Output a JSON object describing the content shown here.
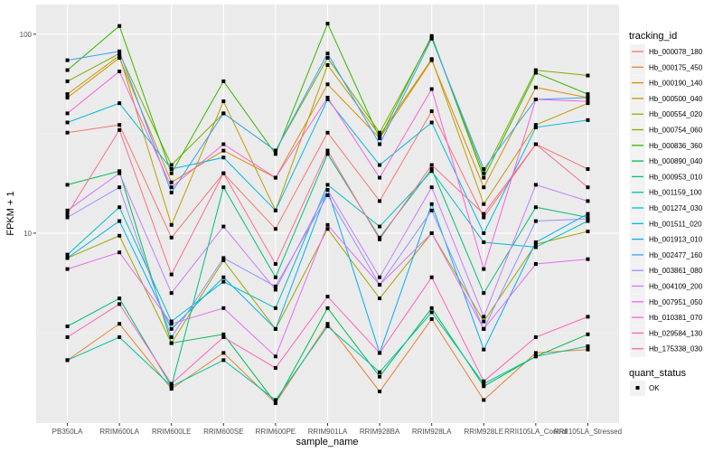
{
  "chart_data": {
    "type": "line",
    "title": "",
    "xlabel": "sample_name",
    "ylabel": "FPKM + 1",
    "yscale": "log10",
    "ylim": [
      1.11,
      141
    ],
    "grid": true,
    "y_ticks": [
      {
        "value": 10,
        "label": "10"
      },
      {
        "value": 100,
        "label": "100"
      }
    ],
    "categories": [
      "PB350LA",
      "RRIM600LA",
      "RRIM600LE",
      "RRIM600SE",
      "RRIM600PE",
      "RRIM901LA",
      "RRIM928BA",
      "RRIM928LA",
      "RRIM928LE",
      "RRII105LA_Control",
      "RRII105LA_Stressed"
    ],
    "legend_title": "tracking_id",
    "legend_position": "right",
    "series": [
      {
        "name": "Hb_000078_180",
        "color": "#F8766D",
        "values": [
          32,
          35,
          9.5,
          20,
          10.5,
          32,
          14.5,
          41,
          12,
          28,
          21
        ]
      },
      {
        "name": "Hb_000175_450",
        "color": "#EA8331",
        "values": [
          2.3,
          3.5,
          1.65,
          2.5,
          1.4,
          3.5,
          1.6,
          3.7,
          1.45,
          2.5,
          2.6
        ]
      },
      {
        "name": "Hb_000190_140",
        "color": "#D89000",
        "values": [
          48,
          76,
          18,
          26,
          19,
          56,
          30,
          74,
          17,
          54,
          48
        ]
      },
      {
        "name": "Hb_000500_040",
        "color": "#C09B00",
        "values": [
          50,
          78,
          11,
          46,
          13,
          70,
          31,
          75,
          14,
          35,
          45
        ]
      },
      {
        "name": "Hb_000554_020",
        "color": "#A3A500",
        "values": [
          7.5,
          9.7,
          2.8,
          7.3,
          3.3,
          10.5,
          4.7,
          10,
          3.6,
          8.8,
          10.2
        ]
      },
      {
        "name": "Hb_000754_060",
        "color": "#7CAE00",
        "values": [
          58,
          80,
          22,
          40,
          26,
          76,
          32,
          96,
          20,
          66,
          62
        ]
      },
      {
        "name": "Hb_000836_360",
        "color": "#39B600",
        "values": [
          66,
          110,
          20,
          58,
          25,
          113,
          30,
          98,
          19,
          64,
          50
        ]
      },
      {
        "name": "Hb_000890_040",
        "color": "#00BB4E",
        "values": [
          17.5,
          20.5,
          2.8,
          3.1,
          1.4,
          4.2,
          1.9,
          4.2,
          1.7,
          2.4,
          3.1
        ]
      },
      {
        "name": "Hb_000953_010",
        "color": "#00BF7D",
        "values": [
          3.4,
          4.7,
          1.7,
          17,
          6.0,
          25,
          9.5,
          21,
          5,
          13.5,
          12
        ]
      },
      {
        "name": "Hb_001159_100",
        "color": "#00C1A3",
        "values": [
          2.3,
          3.0,
          1.7,
          2.3,
          1.45,
          3.4,
          2.0,
          4.0,
          1.75,
          2.4,
          2.7
        ]
      },
      {
        "name": "Hb_001274_030",
        "color": "#00BFC4",
        "values": [
          7.8,
          13.5,
          3.6,
          5.7,
          4.2,
          17.5,
          10.8,
          20.5,
          9.0,
          8.5,
          11.5
        ]
      },
      {
        "name": "Hb_001511_020",
        "color": "#00BAE0",
        "values": [
          36,
          45,
          21,
          24,
          13,
          47,
          22,
          36,
          10,
          34,
          37
        ]
      },
      {
        "name": "Hb_001913_010",
        "color": "#00B0F6",
        "values": [
          7.5,
          11.5,
          3.3,
          6.0,
          3.3,
          16.5,
          2.5,
          14,
          2.6,
          9,
          12.5
        ]
      },
      {
        "name": "Hb_002477_160",
        "color": "#35A2FF",
        "values": [
          74,
          82,
          16,
          40,
          26,
          80,
          28,
          95,
          21,
          47,
          48
        ]
      },
      {
        "name": "Hb_003861_080",
        "color": "#9590FF",
        "values": [
          12,
          17,
          3.0,
          7.5,
          5.4,
          15.5,
          5.5,
          13,
          3.3,
          11.5,
          11.8
        ]
      },
      {
        "name": "Hb_004109_200",
        "color": "#C77CFF",
        "values": [
          13,
          20,
          5.0,
          10.8,
          5.2,
          16.5,
          6.0,
          17,
          3.8,
          17.5,
          14.5
        ]
      },
      {
        "name": "Hb_007951_050",
        "color": "#E76BF3",
        "values": [
          6.6,
          8,
          3.5,
          4.2,
          2.4,
          11,
          5.5,
          10,
          3.3,
          7,
          7.4
        ]
      },
      {
        "name": "Hb_010381_070",
        "color": "#FA62DB",
        "values": [
          40,
          65,
          17,
          28,
          19,
          48,
          19,
          53,
          6.6,
          47,
          46
        ]
      },
      {
        "name": "Hb_029584_130",
        "color": "#FF62BC",
        "values": [
          3.0,
          4.4,
          1.75,
          3.0,
          2.1,
          4.8,
          2.5,
          6.0,
          1.8,
          3.0,
          3.8
        ]
      },
      {
        "name": "Hb_175338_030",
        "color": "#FF6C91",
        "values": [
          12.5,
          33,
          6.2,
          20,
          7,
          26,
          9.3,
          22,
          12.5,
          28,
          17
        ]
      }
    ],
    "shape_legend": {
      "title": "quant_status",
      "items": [
        {
          "label": "OK",
          "shape": "square"
        }
      ]
    }
  }
}
